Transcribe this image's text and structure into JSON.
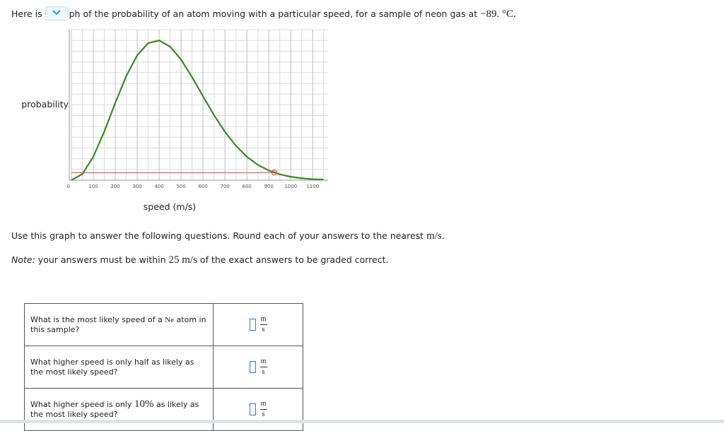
{
  "intro": {
    "prefix": "Here is",
    "suffix": "ph of the probability of an atom moving with a particular speed, for a sample of neon gas at",
    "temperature": "−89. °C."
  },
  "chart_data": {
    "type": "line",
    "y_label": "probability",
    "x_label": "speed (m/s)",
    "x": [
      0,
      50,
      100,
      150,
      200,
      250,
      300,
      350,
      400,
      450,
      500,
      550,
      600,
      650,
      700,
      750,
      800,
      850,
      900,
      950,
      1000,
      1050,
      1100,
      1150
    ],
    "series": [
      {
        "color": "#3a8a1e",
        "values": [
          0,
          0.044,
          0.168,
          0.348,
          0.552,
          0.743,
          0.892,
          0.979,
          0.998,
          0.954,
          0.861,
          0.736,
          0.599,
          0.465,
          0.345,
          0.246,
          0.167,
          0.109,
          0.069,
          0.042,
          0.024,
          0.014,
          0.007,
          0.004
        ]
      }
    ],
    "marker": {
      "x": 925,
      "y": 0.054,
      "color": "#e8524a"
    },
    "xlim": [
      0,
      1170
    ],
    "ylim": [
      0,
      1.075
    ],
    "xticks": [
      0,
      100,
      200,
      300,
      400,
      500,
      600,
      700,
      800,
      900,
      1000,
      1100
    ],
    "grid": true
  },
  "instruction": {
    "text": "Use this graph to answer the following questions. Round each of your answers to the nearest",
    "unit": "m/s",
    "end": "."
  },
  "note": {
    "label": "Note:",
    "before": "your answers must be within",
    "amount": "25 m/s",
    "after": "of the exact answers to be graded correct."
  },
  "units": {
    "numerator": "m",
    "denominator": "s"
  },
  "questions": [
    {
      "before": "What is the most likely speed of a",
      "symbol": "Ne",
      "after": "atom in this sample?"
    },
    {
      "before": "What higher speed is only half as likely as the most likely speed?"
    },
    {
      "before": "What higher speed is only",
      "symbol": "10%",
      "after": "as likely as the most likely speed?"
    }
  ]
}
